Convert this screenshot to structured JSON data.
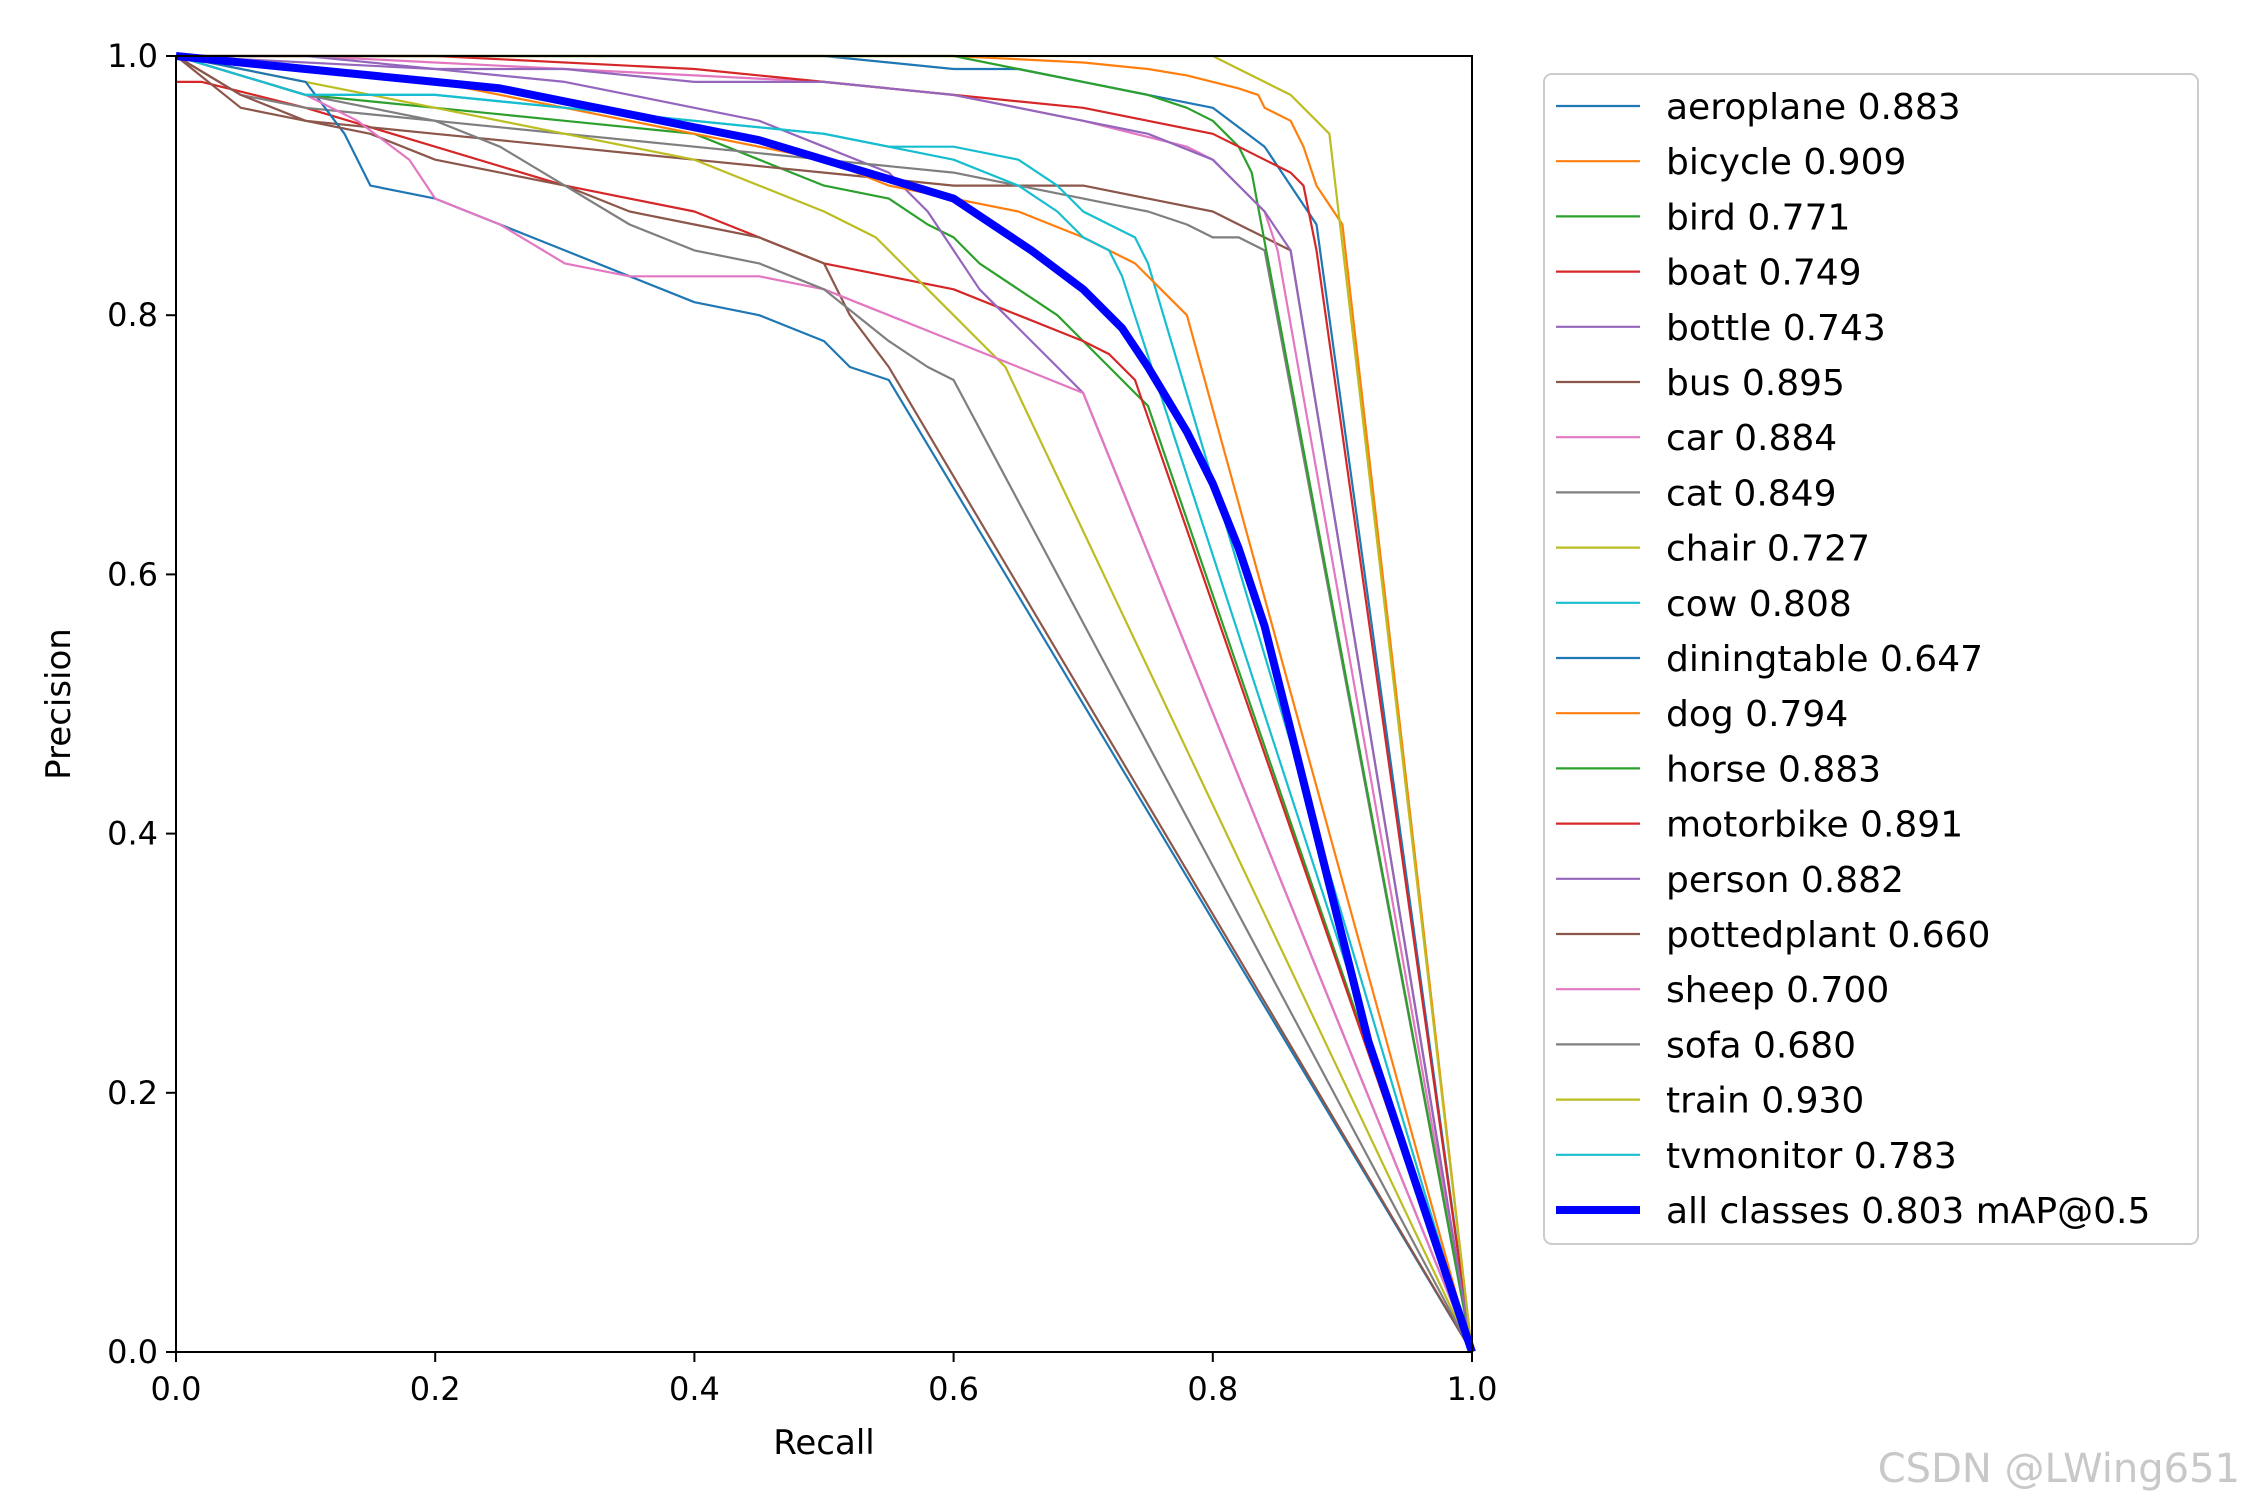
{
  "chart_data": {
    "type": "line",
    "xlabel": "Recall",
    "ylabel": "Precision",
    "xlim": [
      0,
      1
    ],
    "ylim": [
      0,
      1
    ],
    "xticks": [
      "0.0",
      "0.2",
      "0.4",
      "0.6",
      "0.8",
      "1.0"
    ],
    "yticks": [
      "0.0",
      "0.2",
      "0.4",
      "0.6",
      "0.8",
      "1.0"
    ],
    "legend_position": "outside-right",
    "series": [
      {
        "name": "aeroplane",
        "label": "aeroplane 0.883",
        "color": "#1f77b4",
        "x": [
          0,
          0.06,
          0.1,
          0.13,
          0.15,
          0.3,
          0.4,
          0.45,
          0.5,
          0.55,
          0.6,
          0.65,
          0.7,
          0.75,
          0.8,
          0.84,
          0.86,
          0.88,
          1.0
        ],
        "y": [
          1,
          1,
          1,
          1,
          1,
          1,
          1,
          1,
          1,
          0.995,
          0.99,
          0.99,
          0.98,
          0.97,
          0.96,
          0.93,
          0.9,
          0.87,
          0
        ]
      },
      {
        "name": "bicycle",
        "label": "bicycle 0.909",
        "color": "#ff7f0e",
        "x": [
          0,
          0.2,
          0.4,
          0.5,
          0.6,
          0.7,
          0.75,
          0.78,
          0.8,
          0.82,
          0.835,
          0.84,
          0.86,
          0.87,
          0.88,
          0.9,
          1.0
        ],
        "y": [
          1,
          1,
          1,
          1,
          1,
          0.995,
          0.99,
          0.985,
          0.98,
          0.975,
          0.97,
          0.96,
          0.95,
          0.93,
          0.9,
          0.87,
          0
        ]
      },
      {
        "name": "bird",
        "label": "bird 0.771",
        "color": "#2ca02c",
        "x": [
          0,
          0.1,
          0.2,
          0.3,
          0.4,
          0.45,
          0.5,
          0.55,
          0.58,
          0.6,
          0.62,
          0.65,
          0.68,
          0.7,
          0.72,
          0.74,
          0.75,
          1.0
        ],
        "y": [
          1,
          0.97,
          0.96,
          0.95,
          0.94,
          0.92,
          0.9,
          0.89,
          0.87,
          0.86,
          0.84,
          0.82,
          0.8,
          0.78,
          0.76,
          0.74,
          0.73,
          0
        ]
      },
      {
        "name": "boat",
        "label": "boat 0.749",
        "color": "#d62728",
        "x": [
          0,
          0.02,
          0.1,
          0.2,
          0.3,
          0.4,
          0.45,
          0.5,
          0.55,
          0.6,
          0.65,
          0.7,
          0.72,
          0.74,
          1.0
        ],
        "y": [
          0.98,
          0.98,
          0.96,
          0.93,
          0.9,
          0.88,
          0.86,
          0.84,
          0.83,
          0.82,
          0.8,
          0.78,
          0.77,
          0.75,
          0
        ]
      },
      {
        "name": "bottle",
        "label": "bottle 0.743",
        "color": "#9467bd",
        "x": [
          0,
          0.2,
          0.3,
          0.4,
          0.45,
          0.5,
          0.55,
          0.58,
          0.6,
          0.62,
          0.64,
          0.66,
          0.68,
          0.7,
          1.0
        ],
        "y": [
          1,
          0.99,
          0.98,
          0.96,
          0.95,
          0.93,
          0.91,
          0.88,
          0.85,
          0.82,
          0.8,
          0.78,
          0.76,
          0.74,
          0
        ]
      },
      {
        "name": "bus",
        "label": "bus 0.895",
        "color": "#8c564b",
        "x": [
          0,
          0.05,
          0.1,
          0.2,
          0.3,
          0.4,
          0.5,
          0.6,
          0.7,
          0.75,
          0.8,
          0.82,
          0.84,
          0.86,
          1.0
        ],
        "y": [
          1,
          0.96,
          0.95,
          0.94,
          0.93,
          0.92,
          0.91,
          0.9,
          0.9,
          0.89,
          0.88,
          0.87,
          0.86,
          0.85,
          0
        ]
      },
      {
        "name": "car",
        "label": "car 0.884",
        "color": "#e377c2",
        "x": [
          0,
          0.1,
          0.2,
          0.3,
          0.4,
          0.5,
          0.6,
          0.65,
          0.7,
          0.74,
          0.78,
          0.8,
          0.82,
          0.84,
          0.85,
          1.0
        ],
        "y": [
          1,
          1,
          0.995,
          0.99,
          0.985,
          0.98,
          0.97,
          0.96,
          0.95,
          0.94,
          0.93,
          0.92,
          0.9,
          0.88,
          0.85,
          0
        ]
      },
      {
        "name": "cat",
        "label": "cat 0.849",
        "color": "#7f7f7f",
        "x": [
          0,
          0.05,
          0.1,
          0.2,
          0.3,
          0.4,
          0.5,
          0.6,
          0.65,
          0.7,
          0.75,
          0.78,
          0.8,
          0.82,
          0.84,
          1.0
        ],
        "y": [
          1,
          0.97,
          0.96,
          0.95,
          0.94,
          0.93,
          0.92,
          0.91,
          0.9,
          0.89,
          0.88,
          0.87,
          0.86,
          0.86,
          0.85,
          0
        ]
      },
      {
        "name": "chair",
        "label": "chair 0.727",
        "color": "#bcbd22",
        "x": [
          0,
          0.1,
          0.2,
          0.3,
          0.4,
          0.45,
          0.5,
          0.54,
          0.56,
          0.58,
          0.6,
          0.62,
          0.64,
          1.0
        ],
        "y": [
          1,
          0.98,
          0.96,
          0.94,
          0.92,
          0.9,
          0.88,
          0.86,
          0.84,
          0.82,
          0.8,
          0.78,
          0.76,
          0
        ]
      },
      {
        "name": "cow",
        "label": "cow 0.808",
        "color": "#17becf",
        "x": [
          0,
          0.1,
          0.2,
          0.3,
          0.4,
          0.5,
          0.55,
          0.6,
          0.65,
          0.68,
          0.7,
          0.72,
          0.74,
          0.75,
          1.0
        ],
        "y": [
          1,
          0.97,
          0.97,
          0.96,
          0.95,
          0.94,
          0.93,
          0.93,
          0.92,
          0.9,
          0.88,
          0.87,
          0.86,
          0.84,
          0
        ]
      },
      {
        "name": "diningtable",
        "label": "diningtable 0.647",
        "color": "#1f77b4",
        "x": [
          0,
          0.1,
          0.13,
          0.15,
          0.2,
          0.25,
          0.3,
          0.35,
          0.4,
          0.45,
          0.5,
          0.52,
          0.55,
          1.0
        ],
        "y": [
          1,
          0.98,
          0.94,
          0.9,
          0.89,
          0.87,
          0.85,
          0.83,
          0.81,
          0.8,
          0.78,
          0.76,
          0.75,
          0
        ]
      },
      {
        "name": "dog",
        "label": "dog 0.794",
        "color": "#ff7f0e",
        "x": [
          0,
          0.1,
          0.2,
          0.3,
          0.4,
          0.5,
          0.55,
          0.6,
          0.65,
          0.7,
          0.72,
          0.74,
          0.76,
          0.78,
          1.0
        ],
        "y": [
          1,
          0.99,
          0.98,
          0.96,
          0.94,
          0.92,
          0.9,
          0.89,
          0.88,
          0.86,
          0.85,
          0.84,
          0.82,
          0.8,
          0
        ]
      },
      {
        "name": "horse",
        "label": "horse 0.883",
        "color": "#2ca02c",
        "x": [
          0,
          0.2,
          0.4,
          0.5,
          0.6,
          0.65,
          0.7,
          0.75,
          0.78,
          0.8,
          0.82,
          0.83,
          1.0
        ],
        "y": [
          1,
          1,
          1,
          1,
          1,
          0.99,
          0.98,
          0.97,
          0.96,
          0.95,
          0.93,
          0.91,
          0
        ]
      },
      {
        "name": "motorbike",
        "label": "motorbike 0.891",
        "color": "#d62728",
        "x": [
          0,
          0.2,
          0.4,
          0.5,
          0.6,
          0.7,
          0.75,
          0.8,
          0.82,
          0.84,
          0.86,
          0.87,
          0.88,
          1.0
        ],
        "y": [
          1,
          1,
          0.99,
          0.98,
          0.97,
          0.96,
          0.95,
          0.94,
          0.93,
          0.92,
          0.91,
          0.9,
          0.85,
          0
        ]
      },
      {
        "name": "person",
        "label": "person 0.882",
        "color": "#9467bd",
        "x": [
          0,
          0.1,
          0.2,
          0.3,
          0.4,
          0.5,
          0.6,
          0.65,
          0.7,
          0.75,
          0.8,
          0.82,
          0.84,
          0.86,
          1.0
        ],
        "y": [
          1,
          1,
          0.99,
          0.99,
          0.98,
          0.98,
          0.97,
          0.96,
          0.95,
          0.94,
          0.92,
          0.9,
          0.88,
          0.85,
          0
        ]
      },
      {
        "name": "pottedplant",
        "label": "pottedplant 0.660",
        "color": "#8c564b",
        "x": [
          0,
          0.05,
          0.1,
          0.15,
          0.2,
          0.25,
          0.3,
          0.35,
          0.4,
          0.45,
          0.5,
          0.52,
          0.55,
          1.0
        ],
        "y": [
          1,
          0.97,
          0.95,
          0.94,
          0.92,
          0.91,
          0.9,
          0.88,
          0.87,
          0.86,
          0.84,
          0.8,
          0.76,
          0
        ]
      },
      {
        "name": "sheep",
        "label": "sheep 0.700",
        "color": "#e377c2",
        "x": [
          0,
          0.1,
          0.14,
          0.18,
          0.2,
          0.25,
          0.3,
          0.35,
          0.4,
          0.45,
          0.5,
          0.55,
          0.6,
          0.65,
          0.7,
          1.0
        ],
        "y": [
          1,
          0.97,
          0.95,
          0.92,
          0.89,
          0.87,
          0.84,
          0.83,
          0.83,
          0.83,
          0.82,
          0.8,
          0.78,
          0.76,
          0.74,
          0
        ]
      },
      {
        "name": "sofa",
        "label": "sofa 0.680",
        "color": "#7f7f7f",
        "x": [
          0,
          0.1,
          0.2,
          0.25,
          0.3,
          0.35,
          0.4,
          0.45,
          0.5,
          0.55,
          0.58,
          0.6,
          1.0
        ],
        "y": [
          1,
          0.97,
          0.95,
          0.93,
          0.9,
          0.87,
          0.85,
          0.84,
          0.82,
          0.78,
          0.76,
          0.75,
          0
        ]
      },
      {
        "name": "train",
        "label": "train 0.930",
        "color": "#bcbd22",
        "x": [
          0,
          0.3,
          0.5,
          0.6,
          0.7,
          0.75,
          0.8,
          0.82,
          0.84,
          0.86,
          0.87,
          0.88,
          0.89,
          1.0
        ],
        "y": [
          1,
          1,
          1,
          1,
          1,
          1,
          1,
          0.99,
          0.98,
          0.97,
          0.96,
          0.95,
          0.94,
          0
        ]
      },
      {
        "name": "tvmonitor",
        "label": "tvmonitor 0.783",
        "color": "#17becf",
        "x": [
          0,
          0.1,
          0.2,
          0.3,
          0.4,
          0.5,
          0.55,
          0.6,
          0.65,
          0.68,
          0.7,
          0.72,
          0.73,
          1.0
        ],
        "y": [
          1,
          0.97,
          0.97,
          0.96,
          0.95,
          0.94,
          0.93,
          0.92,
          0.9,
          0.88,
          0.86,
          0.85,
          0.83,
          0
        ]
      },
      {
        "name": "all-classes",
        "label": "all classes 0.803 mAP@0.5",
        "color": "#0000ff",
        "bold": true,
        "x": [
          0,
          0.05,
          0.1,
          0.15,
          0.2,
          0.25,
          0.3,
          0.35,
          0.4,
          0.45,
          0.5,
          0.55,
          0.6,
          0.63,
          0.66,
          0.7,
          0.73,
          0.75,
          0.78,
          0.8,
          0.82,
          0.84,
          0.86,
          0.88,
          0.9,
          0.92,
          0.95,
          0.98,
          1.0
        ],
        "y": [
          1,
          0.995,
          0.99,
          0.985,
          0.98,
          0.975,
          0.965,
          0.955,
          0.945,
          0.935,
          0.92,
          0.905,
          0.89,
          0.87,
          0.85,
          0.82,
          0.79,
          0.76,
          0.71,
          0.67,
          0.62,
          0.56,
          0.48,
          0.4,
          0.32,
          0.24,
          0.15,
          0.06,
          0
        ]
      }
    ]
  },
  "watermark": "CSDN @LWing651"
}
